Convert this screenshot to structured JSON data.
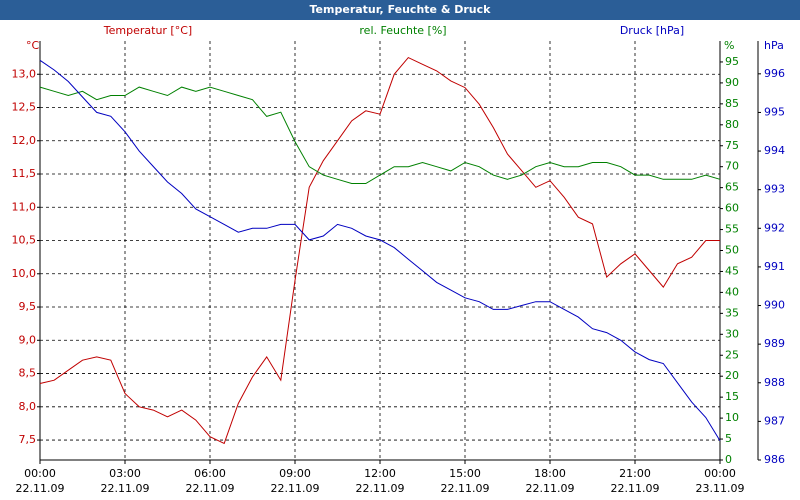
{
  "chart_data": {
    "type": "line",
    "title": "Temperatur, Feuchte & Druck",
    "y_unit": "°C",
    "y2_unit": "%",
    "y3_unit": "hPa",
    "x": [
      0,
      0.5,
      1,
      1.5,
      2,
      2.5,
      3,
      3.5,
      4,
      4.5,
      5,
      5.5,
      6,
      6.5,
      7,
      7.5,
      8,
      8.5,
      9,
      9.5,
      10,
      10.5,
      11,
      11.5,
      12,
      12.5,
      13,
      13.5,
      14,
      14.5,
      15,
      15.5,
      16,
      16.5,
      17,
      17.5,
      18,
      18.5,
      19,
      19.5,
      20,
      20.5,
      21,
      21.5,
      22,
      22.5,
      23,
      23.5,
      24
    ],
    "xlim": [
      0,
      24
    ],
    "xticks": [
      {
        "value": 0,
        "label": "00:00"
      },
      {
        "value": 3,
        "label": "03:00"
      },
      {
        "value": 6,
        "label": "06:00"
      },
      {
        "value": 9,
        "label": "09:00"
      },
      {
        "value": 12,
        "label": "12:00"
      },
      {
        "value": 15,
        "label": "15:00"
      },
      {
        "value": 18,
        "label": "18:00"
      },
      {
        "value": 21,
        "label": "21:00"
      },
      {
        "value": 24,
        "label": "00:00"
      }
    ],
    "xtick_dates": [
      "22.11.09",
      "22.11.09",
      "22.11.09",
      "22.11.09",
      "22.11.09",
      "22.11.09",
      "22.11.09",
      "22.11.09",
      "23.11.09"
    ],
    "ylim": [
      7.2,
      13.5
    ],
    "yticks": [
      {
        "value": 7.5,
        "label": "7,5"
      },
      {
        "value": 8,
        "label": "8,0"
      },
      {
        "value": 8.5,
        "label": "8,5"
      },
      {
        "value": 9,
        "label": "9,0"
      },
      {
        "value": 9.5,
        "label": "9,5"
      },
      {
        "value": 10,
        "label": "10,0"
      },
      {
        "value": 10.5,
        "label": "10,5"
      },
      {
        "value": 11,
        "label": "11,0"
      },
      {
        "value": 11.5,
        "label": "11,5"
      },
      {
        "value": 12,
        "label": "12,0"
      },
      {
        "value": 12.5,
        "label": "12,5"
      },
      {
        "value": 13,
        "label": "13,0"
      }
    ],
    "y2lim": [
      0,
      100
    ],
    "y2ticks": [
      0,
      5,
      10,
      15,
      20,
      25,
      30,
      35,
      40,
      45,
      50,
      55,
      60,
      65,
      70,
      75,
      80,
      85,
      90,
      95
    ],
    "y3lim": [
      986,
      996.85
    ],
    "y3ticks": [
      986,
      987,
      988,
      989,
      990,
      991,
      992,
      993,
      994,
      995,
      996
    ],
    "grid": true,
    "series": [
      {
        "name": "Temperatur [°C]",
        "color": "#c00000",
        "axis": "y",
        "values": [
          8.35,
          8.4,
          8.55,
          8.7,
          8.75,
          8.7,
          8.2,
          8.0,
          7.95,
          7.85,
          7.95,
          7.8,
          7.55,
          7.45,
          8.05,
          8.45,
          8.75,
          8.4,
          9.9,
          11.3,
          11.7,
          12.0,
          12.3,
          12.45,
          12.4,
          13.0,
          13.25,
          13.15,
          13.05,
          12.9,
          12.8,
          12.55,
          12.2,
          11.8,
          11.55,
          11.3,
          11.4,
          11.15,
          10.85,
          10.75,
          9.95,
          10.15,
          10.3,
          10.05,
          9.8,
          10.15,
          10.25,
          10.5,
          10.5
        ]
      },
      {
        "name": "rel. Feuchte [%]",
        "color": "#008000",
        "axis": "y2",
        "values": [
          89,
          88,
          87,
          88,
          86,
          87,
          87,
          89,
          88,
          87,
          89,
          88,
          89,
          88,
          87,
          86,
          82,
          83,
          76,
          70,
          68,
          67,
          66,
          66,
          68,
          70,
          70,
          71,
          70,
          69,
          71,
          70,
          68,
          67,
          68,
          70,
          71,
          70,
          70,
          71,
          71,
          70,
          68,
          68,
          67,
          67,
          67,
          68,
          67
        ]
      },
      {
        "name": "Druck [hPa]",
        "color": "#0000c0",
        "axis": "y3",
        "values": [
          996.35,
          996.1,
          995.8,
          995.4,
          995.0,
          994.9,
          994.5,
          994.0,
          993.6,
          993.2,
          992.9,
          992.5,
          992.3,
          992.1,
          991.9,
          992.0,
          992.0,
          992.1,
          992.1,
          991.7,
          991.8,
          992.1,
          992.0,
          991.8,
          991.7,
          991.5,
          991.2,
          990.9,
          990.6,
          990.4,
          990.2,
          990.1,
          989.9,
          989.9,
          990.0,
          990.1,
          990.1,
          989.9,
          989.7,
          989.4,
          989.3,
          989.1,
          988.8,
          988.6,
          988.5,
          988.0,
          987.5,
          987.1,
          986.5
        ]
      }
    ]
  }
}
